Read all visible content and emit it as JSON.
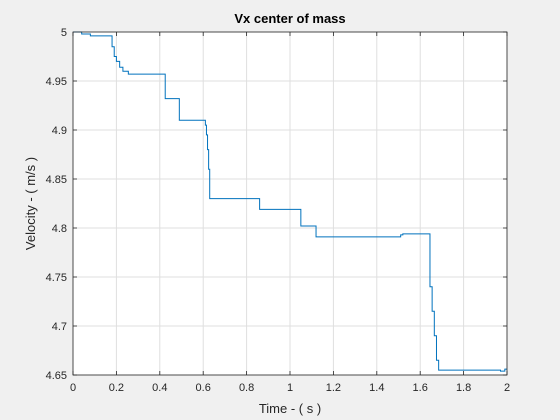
{
  "chart_data": {
    "type": "line",
    "title": "Vx center of mass",
    "xlabel": "Time - ( s )",
    "ylabel": "Velocity - ( m/s )",
    "xlim": [
      0,
      2
    ],
    "ylim": [
      4.65,
      5
    ],
    "xticks": [
      0,
      0.2,
      0.4,
      0.6,
      0.8,
      1,
      1.2,
      1.4,
      1.6,
      1.8,
      2
    ],
    "xtick_labels": [
      "0",
      "0.2",
      "0.4",
      "0.6",
      "0.8",
      "1",
      "1.2",
      "1.4",
      "1.6",
      "1.8",
      "2"
    ],
    "yticks": [
      4.65,
      4.7,
      4.75,
      4.8,
      4.85,
      4.9,
      4.95,
      5
    ],
    "ytick_labels": [
      "4.65",
      "4.7",
      "4.75",
      "4.8",
      "4.85",
      "4.9",
      "4.95",
      "5"
    ],
    "grid": true,
    "line_color": "#0072bd",
    "series": [
      {
        "x": [
          0,
          0.04,
          0.04,
          0.08,
          0.08,
          0.18,
          0.18,
          0.19,
          0.19,
          0.2,
          0.2,
          0.215,
          0.215,
          0.23,
          0.23,
          0.255,
          0.255,
          0.425,
          0.425,
          0.49,
          0.49,
          0.61,
          0.61,
          0.615,
          0.615,
          0.62,
          0.62,
          0.625,
          0.625,
          0.63,
          0.63,
          0.86,
          0.86,
          1.05,
          1.05,
          1.12,
          1.12,
          1.51,
          1.51,
          1.52,
          1.52,
          1.645,
          1.645,
          1.655,
          1.655,
          1.665,
          1.665,
          1.675,
          1.675,
          1.685,
          1.685,
          1.97,
          1.97,
          1.99,
          1.99,
          2.0
        ],
        "y": [
          5.0,
          5.0,
          4.998,
          4.998,
          4.996,
          4.996,
          4.985,
          4.985,
          4.975,
          4.975,
          4.97,
          4.97,
          4.964,
          4.964,
          4.96,
          4.96,
          4.957,
          4.957,
          4.932,
          4.932,
          4.91,
          4.91,
          4.905,
          4.905,
          4.895,
          4.895,
          4.88,
          4.88,
          4.86,
          4.86,
          4.83,
          4.83,
          4.819,
          4.819,
          4.802,
          4.802,
          4.791,
          4.791,
          4.793,
          4.793,
          4.794,
          4.794,
          4.74,
          4.74,
          4.715,
          4.715,
          4.69,
          4.69,
          4.665,
          4.665,
          4.655,
          4.655,
          4.654,
          4.654,
          4.656,
          4.656
        ]
      }
    ]
  }
}
